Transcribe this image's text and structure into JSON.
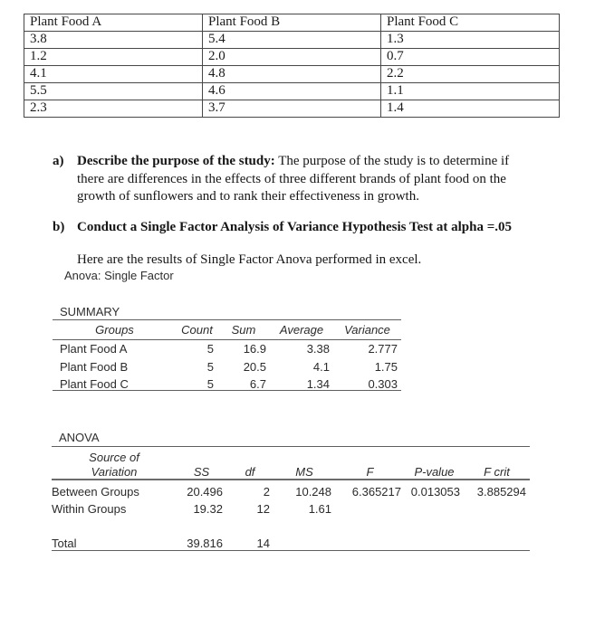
{
  "colors": {
    "page_background": "#ffffff",
    "text": "#1a1a1a",
    "table_border": "#474747",
    "excel_rule": "#5f5f5f"
  },
  "document": {
    "data_table": {
      "headers": [
        "Plant Food A",
        "Plant Food B",
        "Plant Food C"
      ],
      "rows": [
        [
          "3.8",
          "5.4",
          "1.3"
        ],
        [
          "1.2",
          "2.0",
          "0.7"
        ],
        [
          "4.1",
          "4.8",
          "2.2"
        ],
        [
          "5.5",
          "4.6",
          "1.1"
        ],
        [
          "2.3",
          "3.7",
          "1.4"
        ]
      ]
    },
    "item_a": {
      "marker": "a)",
      "bold_lead": "Describe the purpose of the study:",
      "line1_rest": " The purpose of the study is to determine if",
      "line2": "there are differences in the effects of three different brands of plant food on the",
      "line3": "growth of sunflowers and to rank their effectiveness in growth."
    },
    "item_b": {
      "marker": "b)",
      "text": "Conduct a Single Factor Analysis of Variance Hypothesis Test at alpha =.05"
    },
    "excel_intro": "Here are the results of Single Factor Anova performed in excel.",
    "anova_caption": "Anova: Single Factor"
  },
  "summary_table": {
    "title": "SUMMARY",
    "headers": [
      "Groups",
      "Count",
      "Sum",
      "Average",
      "Variance"
    ],
    "rows": [
      [
        "Plant Food A",
        "5",
        "16.9",
        "3.38",
        "2.777"
      ],
      [
        "Plant Food B",
        "5",
        "20.5",
        "4.1",
        "1.75"
      ],
      [
        "Plant Food C",
        "5",
        "6.7",
        "1.34",
        "0.303"
      ]
    ]
  },
  "anova_table": {
    "title": "ANOVA",
    "source_header_line1": "Source of",
    "source_header_line2": "Variation",
    "headers": [
      "SS",
      "df",
      "MS",
      "F",
      "P-value",
      "F crit"
    ],
    "rows": [
      [
        "Between Groups",
        "20.496",
        "2",
        "10.248",
        "6.365217",
        "0.013053",
        "3.885294"
      ],
      [
        "Within Groups",
        "19.32",
        "12",
        "1.61",
        "",
        "",
        ""
      ],
      [
        "Total",
        "39.816",
        "14",
        "",
        "",
        "",
        ""
      ]
    ]
  }
}
